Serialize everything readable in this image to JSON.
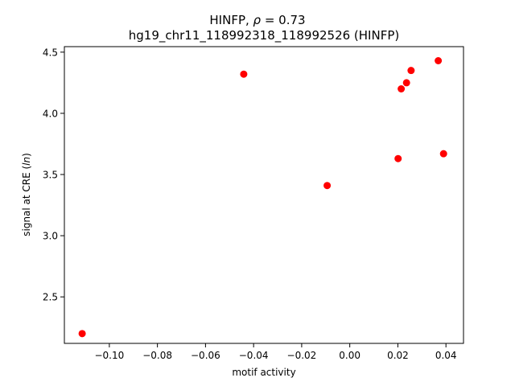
{
  "chart_data": {
    "type": "scatter",
    "title_line1_prefix": "HINFP, ",
    "title_line1_symbol": "ρ",
    "title_line1_value": " = 0.73",
    "title_line2": "hg19_chr11_118992318_118992526 (HINFP)",
    "xlabel": "motif activity",
    "ylabel_prefix": "signal at CRE (",
    "ylabel_italic": "ln",
    "ylabel_suffix": ")",
    "xlim": [
      -0.1187,
      0.0473
    ],
    "ylim": [
      2.12,
      4.545
    ],
    "xticks": [
      {
        "value": -0.1,
        "label": "−0.10"
      },
      {
        "value": -0.08,
        "label": "−0.08"
      },
      {
        "value": -0.06,
        "label": "−0.06"
      },
      {
        "value": -0.04,
        "label": "−0.04"
      },
      {
        "value": -0.02,
        "label": "−0.02"
      },
      {
        "value": 0.0,
        "label": "0.00"
      },
      {
        "value": 0.02,
        "label": "0.02"
      },
      {
        "value": 0.04,
        "label": "0.04"
      }
    ],
    "yticks": [
      {
        "value": 2.5,
        "label": "2.5"
      },
      {
        "value": 3.0,
        "label": "3.0"
      },
      {
        "value": 3.5,
        "label": "3.5"
      },
      {
        "value": 4.0,
        "label": "4.0"
      },
      {
        "value": 4.5,
        "label": "4.5"
      }
    ],
    "points": [
      {
        "x": -0.1113,
        "y": 2.2
      },
      {
        "x": -0.0441,
        "y": 4.32
      },
      {
        "x": -0.0094,
        "y": 3.41
      },
      {
        "x": 0.0201,
        "y": 3.63
      },
      {
        "x": 0.0214,
        "y": 4.2
      },
      {
        "x": 0.0236,
        "y": 4.25
      },
      {
        "x": 0.0255,
        "y": 4.35
      },
      {
        "x": 0.0368,
        "y": 4.43
      },
      {
        "x": 0.039,
        "y": 3.67
      }
    ],
    "point_color": "#ff0000",
    "grid": false
  }
}
